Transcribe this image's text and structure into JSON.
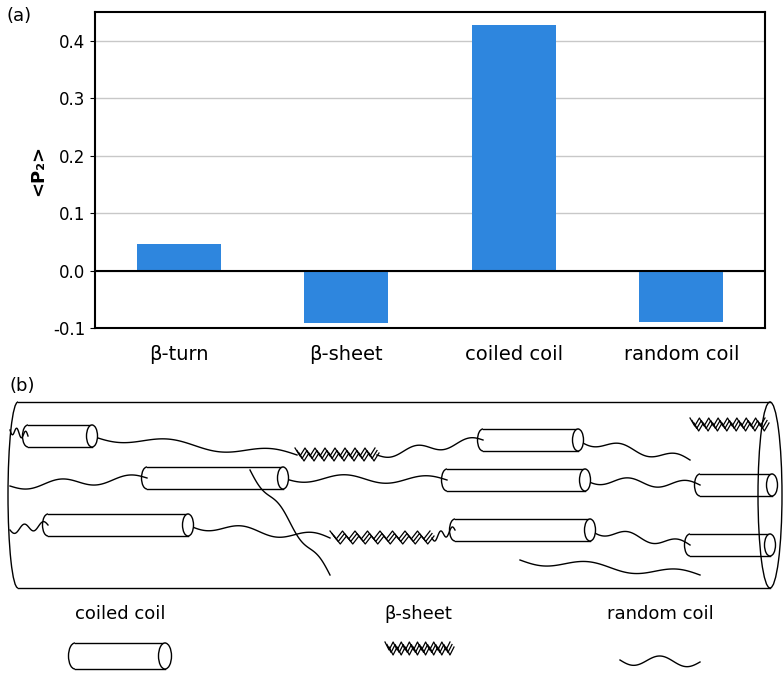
{
  "chart_data": {
    "type": "bar",
    "panel_label": "(a)",
    "categories": [
      "β-turn",
      "β-sheet",
      "coiled coil",
      "random coil"
    ],
    "values": [
      0.046,
      -0.091,
      0.427,
      -0.089
    ],
    "color": "#2e86de",
    "ylabel": "<P₂>",
    "ylim": [
      -0.1,
      0.45
    ],
    "yticks": [
      -0.1,
      0.0,
      0.1,
      0.2,
      0.3,
      0.4
    ],
    "grid": true
  },
  "diagram": {
    "panel_label": "(b)",
    "legend": [
      "coiled coil",
      "β-sheet",
      "random coil"
    ]
  }
}
